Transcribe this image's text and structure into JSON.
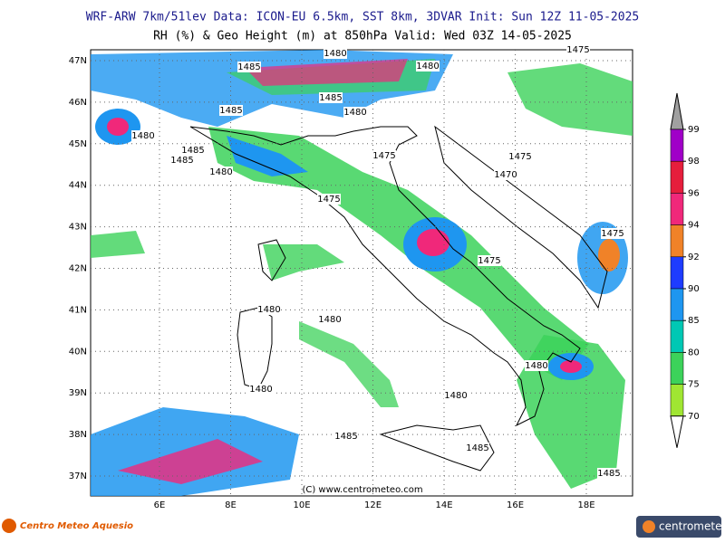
{
  "header": {
    "line1": "WRF-ARW 7km/51lev   Data: ICON-EU 6.5km, SST 8km, 3DVAR   Init: Sun 12Z 11-05-2025",
    "line2": "RH (%) & Geo Height (m) at 850hPa  Valid: Wed 03Z 14-05-2025"
  },
  "map": {
    "lat_labels": [
      "47N",
      "46N",
      "45N",
      "44N",
      "43N",
      "42N",
      "41N",
      "40N",
      "39N",
      "38N",
      "37N"
    ],
    "lon_labels": [
      "6E",
      "8E",
      "10E",
      "12E",
      "14E",
      "16E",
      "18E"
    ],
    "contour_labels": [
      "1485",
      "1480",
      "1480",
      "1475",
      "1485",
      "1480",
      "1485",
      "1480",
      "1485",
      "1485",
      "1480",
      "1475",
      "1475",
      "1470",
      "1475",
      "1475",
      "1475",
      "1480",
      "1480",
      "1480",
      "1480",
      "1480",
      "1485",
      "1485",
      "1485"
    ],
    "copyright": "(C) www.centrometeo.com"
  },
  "colorbar": {
    "ticks": [
      99,
      98,
      96,
      94,
      92,
      90,
      85,
      80,
      75,
      70
    ],
    "colors": [
      "#a000c8",
      "#e61e3c",
      "#f0287a",
      "#f08228",
      "#1e3cff",
      "#1e96f0",
      "#00c8b4",
      "#3cd25a",
      "#a0e632"
    ]
  },
  "footer": {
    "left_logo": "Centro Meteo Aquesio",
    "right_logo": "centrometeo"
  }
}
